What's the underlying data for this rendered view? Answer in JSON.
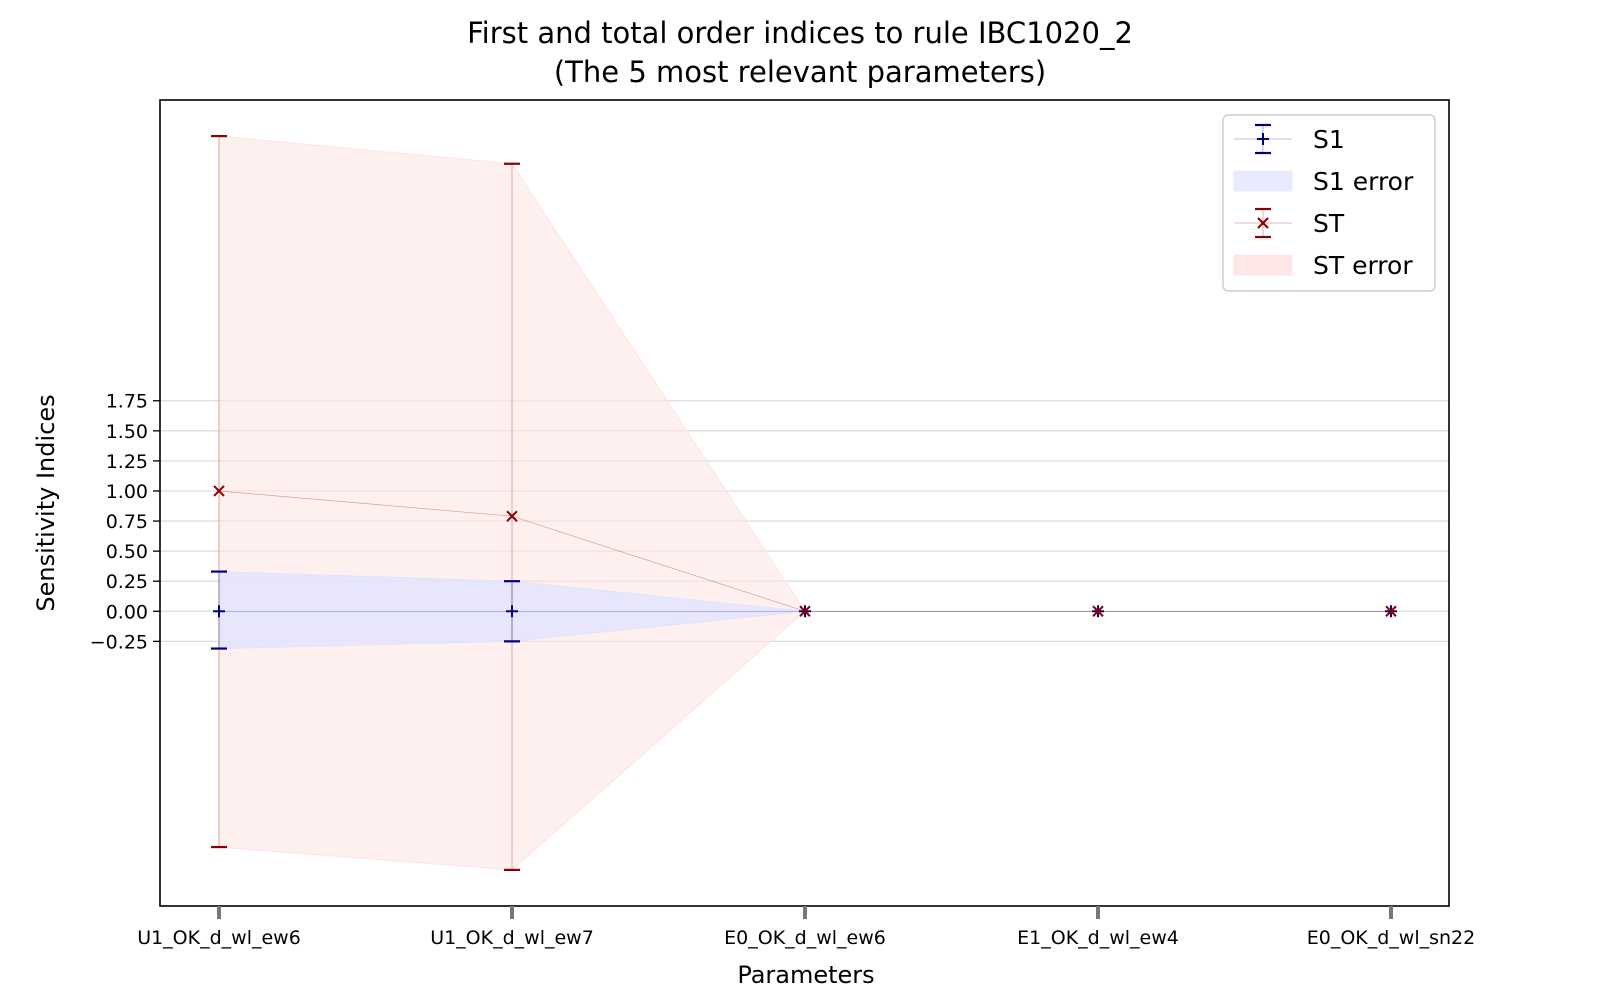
{
  "chart_data": {
    "type": "scatter",
    "title": "First and total order indices to rule IBC1020_2",
    "subtitle": "(The 5 most relevant parameters)",
    "xlabel": "Parameters",
    "ylabel": "Sensitivity Indices",
    "categories": [
      "U1_OK_d_wl_ew6",
      "U1_OK_d_wl_ew7",
      "E0_OK_d_wl_ew6",
      "E1_OK_d_wl_ew4",
      "E0_OK_d_wl_sn22"
    ],
    "y_ticks": [
      -0.25,
      0.0,
      0.25,
      0.5,
      0.75,
      1.0,
      1.25,
      1.5,
      1.75
    ],
    "y_tick_labels": [
      "−0.25",
      "0.00",
      "0.25",
      "0.50",
      "0.75",
      "1.00",
      "1.25",
      "1.50",
      "1.75"
    ],
    "ylim": [
      -2.45,
      4.25
    ],
    "grid": "horizontal",
    "legend_position": "top-right",
    "series": [
      {
        "name": "S1",
        "marker": "+",
        "color": "#00007a",
        "values": [
          0.0,
          0.0,
          0.0,
          0.0,
          0.0
        ],
        "err_low": [
          -0.31,
          -0.25,
          0.0,
          0.0,
          0.0
        ],
        "err_high": [
          0.33,
          0.25,
          0.0,
          0.0,
          0.0
        ]
      },
      {
        "name": "ST",
        "marker": "x",
        "color": "#8b0000",
        "values": [
          1.0,
          0.79,
          0.0,
          0.0,
          0.0
        ],
        "err_low": [
          -1.96,
          -2.15,
          0.0,
          0.0,
          0.0
        ],
        "err_high": [
          3.95,
          3.72,
          0.0,
          0.0,
          0.0
        ]
      }
    ],
    "legend": [
      {
        "label": "S1",
        "kind": "marker",
        "series": "S1"
      },
      {
        "label": "S1 error",
        "kind": "patch",
        "color": "#e8ebff"
      },
      {
        "label": "ST",
        "kind": "marker",
        "series": "ST"
      },
      {
        "label": "ST error",
        "kind": "patch",
        "color": "#ffe6e6"
      }
    ],
    "colors": {
      "s1": "#00007a",
      "st": "#8b0000",
      "s1_fill": "#e0e3ff",
      "st_fill": "#ffe3e3",
      "grid": "#dddddd",
      "axis": "#000000"
    }
  }
}
